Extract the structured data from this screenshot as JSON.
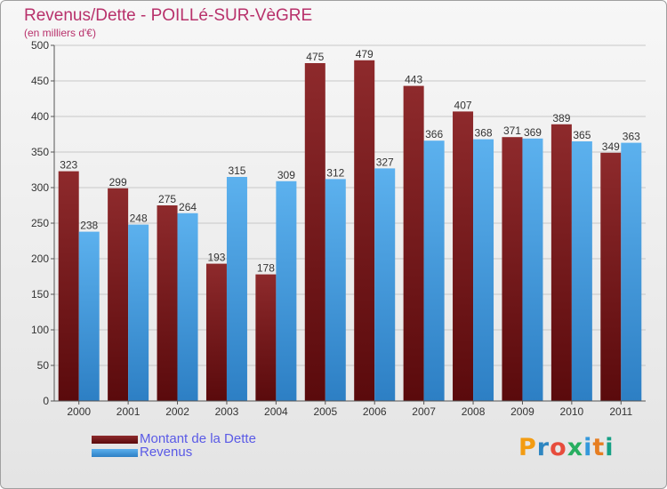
{
  "chart_data": {
    "type": "bar",
    "title": "Revenus/Dette - POILLé-SUR-VèGRE",
    "subtitle": "(en milliers d'€)",
    "categories": [
      "2000",
      "2001",
      "2002",
      "2003",
      "2004",
      "2005",
      "2006",
      "2007",
      "2008",
      "2009",
      "2010",
      "2011"
    ],
    "series": [
      {
        "name": "Montant de la Dette",
        "values": [
          323,
          299,
          275,
          193,
          178,
          475,
          479,
          443,
          407,
          371,
          389,
          349
        ],
        "color": "#7a1416"
      },
      {
        "name": "Revenus",
        "values": [
          238,
          248,
          264,
          315,
          309,
          312,
          327,
          366,
          368,
          369,
          365,
          363
        ],
        "color": "#4aa3e6"
      }
    ],
    "ylim": [
      0,
      500
    ],
    "yticks": [
      0,
      50,
      100,
      150,
      200,
      250,
      300,
      350,
      400,
      450,
      500
    ],
    "grid": true,
    "legend_position": "bottom-left"
  },
  "logo": {
    "text": "Proxiti",
    "letter_colors": [
      "#f39c12",
      "#2e86c1",
      "#e74c3c",
      "#27ae60",
      "#3498db",
      "#e67e22",
      "#16a085"
    ]
  }
}
